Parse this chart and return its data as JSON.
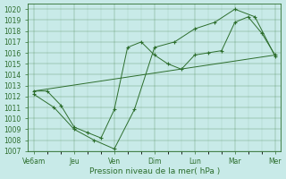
{
  "xlabel": "Pression niveau de la mer( hPa )",
  "xtick_labels": [
    "Ve6am",
    "Jeu",
    "Ven",
    "Dim",
    "Lun",
    "Mar",
    "Mer"
  ],
  "xtick_positions": [
    0,
    1,
    2,
    3,
    4,
    5,
    6
  ],
  "ylim": [
    1007,
    1020.5
  ],
  "ytick_values": [
    1007,
    1008,
    1009,
    1010,
    1011,
    1012,
    1013,
    1014,
    1015,
    1016,
    1017,
    1018,
    1019,
    1020
  ],
  "bg_color": "#c8eae8",
  "grid_color": "#3d7a3d",
  "line_color": "#2d6e2d",
  "series": [
    {
      "x": [
        0,
        0.33,
        0.67,
        1.0,
        1.33,
        1.67,
        2.0,
        2.33,
        2.67,
        3.0,
        3.33,
        3.67,
        4.0,
        4.33,
        4.67,
        5.0,
        5.33,
        5.67,
        6.0
      ],
      "y": [
        1012.5,
        1012.5,
        1011.2,
        1009.2,
        1008.7,
        1008.2,
        1010.8,
        1016.5,
        1017.0,
        1015.8,
        1015.0,
        1014.5,
        1015.8,
        1016.0,
        1016.2,
        1018.8,
        1019.3,
        1017.8,
        1015.8
      ]
    },
    {
      "x": [
        0,
        6.0
      ],
      "y": [
        1012.5,
        1015.8
      ]
    },
    {
      "x": [
        0,
        0.5,
        1.0,
        1.5,
        2.0,
        2.5,
        3.0,
        3.5,
        4.0,
        4.5,
        5.0,
        5.5,
        6.0
      ],
      "y": [
        1012.2,
        1011.0,
        1009.0,
        1008.0,
        1007.2,
        1010.8,
        1016.5,
        1017.0,
        1018.2,
        1018.8,
        1020.0,
        1019.3,
        1015.7
      ]
    }
  ]
}
